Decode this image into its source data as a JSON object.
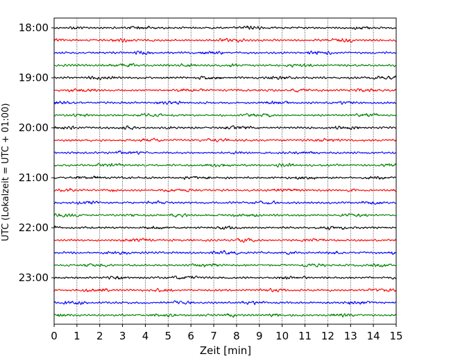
{
  "chart_data": {
    "type": "line",
    "title": "",
    "xlabel": "Zeit  [min]",
    "ylabel": "UTC (Lokalzeit = UTC + 01:00)",
    "xlim": [
      0,
      15
    ],
    "x_ticks": [
      "0",
      "1",
      "2",
      "3",
      "4",
      "5",
      "6",
      "7",
      "8",
      "9",
      "10",
      "11",
      "12",
      "13",
      "14",
      "15"
    ],
    "y_ticks": [
      "18:00",
      "19:00",
      "20:00",
      "21:00",
      "22:00",
      "23:00"
    ],
    "x_grid": true,
    "y_grid": false,
    "trace_colors": [
      "#000000",
      "#ff0000",
      "#0000ff",
      "#008000"
    ],
    "traces": [
      {
        "start": "18:00",
        "color": "#000000"
      },
      {
        "start": "18:15",
        "color": "#ff0000"
      },
      {
        "start": "18:30",
        "color": "#0000ff"
      },
      {
        "start": "18:45",
        "color": "#008000"
      },
      {
        "start": "19:00",
        "color": "#000000"
      },
      {
        "start": "19:15",
        "color": "#ff0000"
      },
      {
        "start": "19:30",
        "color": "#0000ff"
      },
      {
        "start": "19:45",
        "color": "#008000"
      },
      {
        "start": "20:00",
        "color": "#000000"
      },
      {
        "start": "20:15",
        "color": "#ff0000"
      },
      {
        "start": "20:30",
        "color": "#0000ff"
      },
      {
        "start": "20:45",
        "color": "#008000"
      },
      {
        "start": "21:00",
        "color": "#000000"
      },
      {
        "start": "21:15",
        "color": "#ff0000"
      },
      {
        "start": "21:30",
        "color": "#0000ff"
      },
      {
        "start": "21:45",
        "color": "#008000"
      },
      {
        "start": "22:00",
        "color": "#000000"
      },
      {
        "start": "22:15",
        "color": "#ff0000"
      },
      {
        "start": "22:30",
        "color": "#0000ff"
      },
      {
        "start": "22:45",
        "color": "#008000"
      },
      {
        "start": "23:00",
        "color": "#000000"
      },
      {
        "start": "23:15",
        "color": "#ff0000"
      },
      {
        "start": "23:30",
        "color": "#0000ff"
      },
      {
        "start": "23:45",
        "color": "#008000"
      }
    ]
  }
}
